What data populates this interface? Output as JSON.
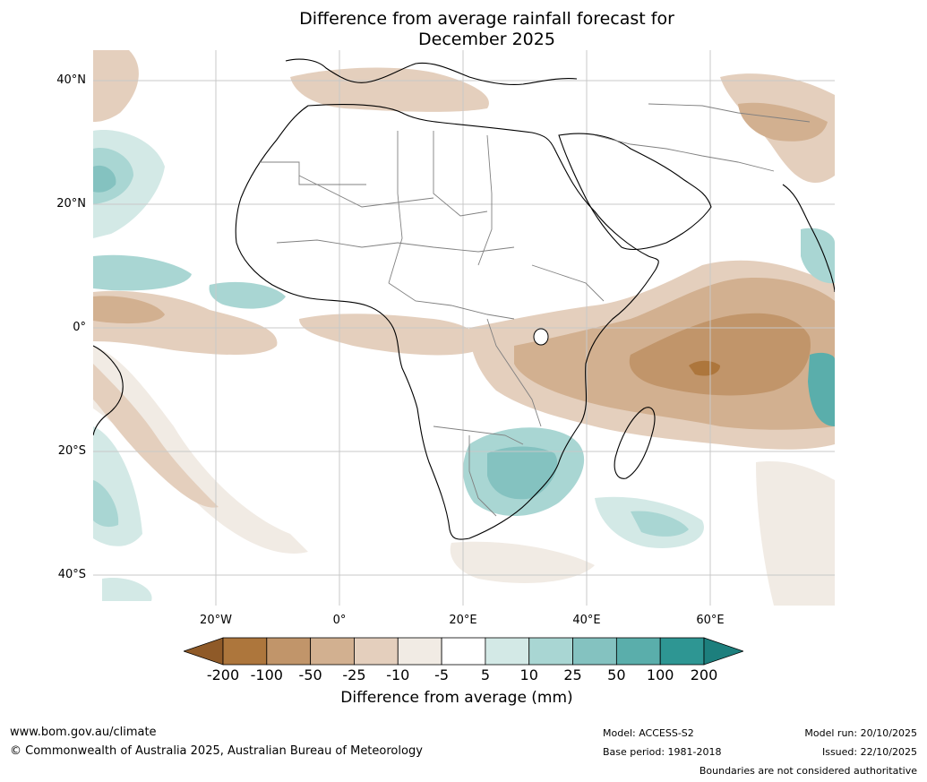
{
  "title_line1": "Difference from average rainfall forecast for",
  "title_line2": "December 2025",
  "lat_labels": [
    "40°N",
    "20°N",
    "0°",
    "20°S",
    "40°S"
  ],
  "lon_labels": [
    "20°W",
    "0°",
    "20°E",
    "40°E",
    "60°E"
  ],
  "colorbar": {
    "ticks": [
      "-200",
      "-100",
      "-50",
      "-25",
      "-10",
      "-5",
      "5",
      "10",
      "25",
      "50",
      "100",
      "200"
    ],
    "colors": [
      "#8f5a28",
      "#ad763c",
      "#c1956a",
      "#d2b090",
      "#e4cfbd",
      "#f1ebe4",
      "#ffffff",
      "#d3e9e6",
      "#a9d6d3",
      "#84c2c0",
      "#5aaeab",
      "#2e9693",
      "#1d7f7d"
    ],
    "label": "Difference from average (mm)"
  },
  "footer": {
    "website": "www.bom.gov.au/climate",
    "copyright": "© Commonwealth of Australia 2025, Australian Bureau of Meteorology",
    "model": "Model: ACCESS-S2",
    "base_period": "Base period: 1981-2018",
    "model_run": "Model run: 20/10/2025",
    "issued": "Issued: 22/10/2025",
    "disclaimer": "Boundaries are not considered authoritative"
  }
}
